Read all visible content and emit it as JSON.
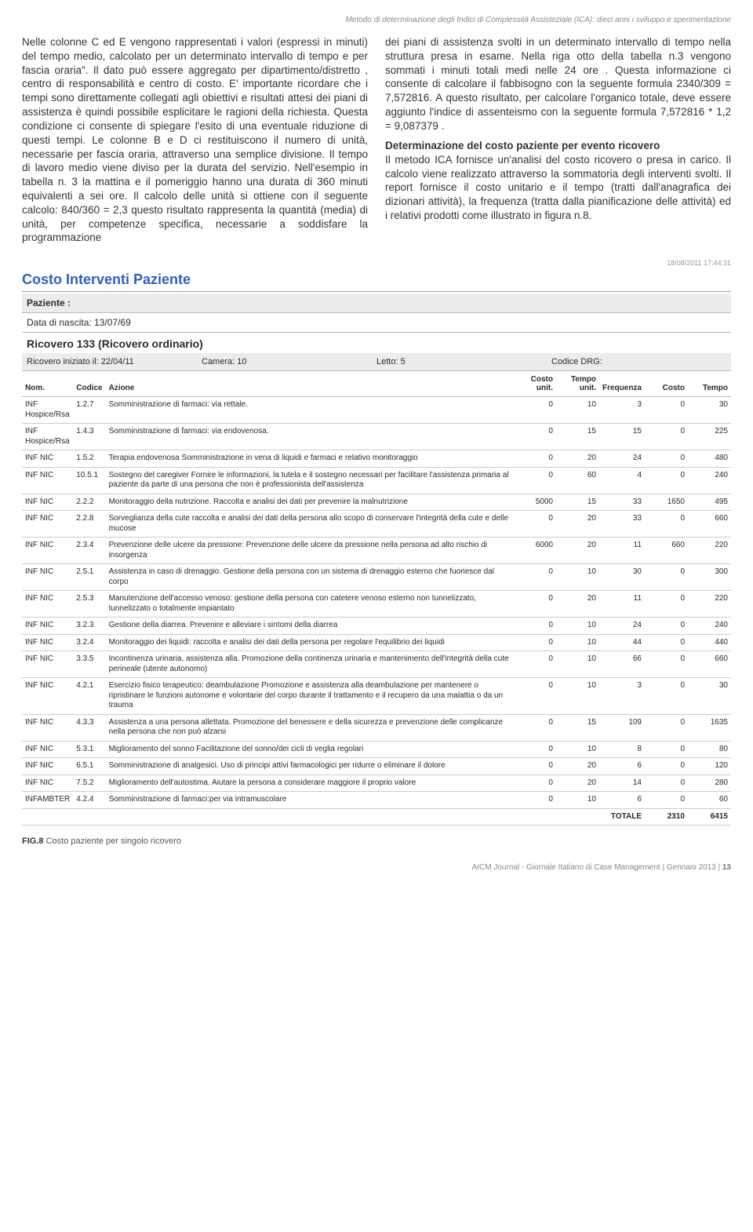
{
  "header": {
    "strip": "Metodo di determinazione degli Indici di Complessità Assisteziale (ICA): dieci anni i sviluppo e sperimentazione"
  },
  "leftCol": {
    "p": "Nelle colonne C ed E vengono rappresentati i valori (espressi in minuti) del tempo medio, calcolato per un determinato intervallo di tempo e per fascia oraria\". Il dato può essere aggregato per dipartimento/distretto , centro di responsabilità e centro di costo. E' importante ricordare che i tempi sono direttamente collegati agli obiettivi e risultati attesi dei piani di assistenza è quindi possibile esplicitare le ragioni della richiesta. Questa condizione ci consente di spiegare l'esito di una eventuale riduzione di questi tempi. Le colonne B e D ci restituiscono il numero di unità, necessarie per fascia oraria, attraverso una semplice divisione. Il tempo di lavoro medio viene diviso per la durata del servizio. Nell'esempio in tabella n. 3 la mattina e il pomeriggio hanno una durata di 360 minuti equivalenti a sei ore. Il calcolo delle unità si ottiene con il seguente calcolo: 840/360 = 2,3 questo risultato rappresenta la quantità (media) di unità, per competenze specifica, necessarie a soddisfare la programmazione"
  },
  "rightCol": {
    "p1": "dei piani di assistenza svolti in un determinato intervallo di tempo nella struttura presa in esame. Nella riga otto della tabella n.3 vengono sommati i minuti totali medi nelle 24 ore . Questa informazione ci consente di calcolare il fabbisogno con la seguente formula 2340/309 = 7,572816. A questo risultato, per calcolare l'organico totale, deve essere aggiunto l'indice di assenteismo con la seguente formula 7,572816 * 1,2 = 9,087379 .",
    "subhead": "Determinazione del costo paziente per evento ricovero",
    "p2": "Il metodo ICA fornisce un'analisi del costo ricovero o presa in carico. Il calcolo viene realizzato attraverso la sommatoria degli interventi svolti. Il report fornisce il costo unitario e il tempo (tratti dall'anagrafica dei dizionari attività), la frequenza (tratta dalla pianificazione delle attività) ed i relativi prodotti come illustrato in figura n.8."
  },
  "report": {
    "timestamp": "18/08/2011 17:44:31",
    "title": "Costo Interventi Paziente",
    "pazienteLabel": "Paziente :",
    "dobLabel": "Data di nascita: 13/07/69",
    "ricovero": "Ricovero 133 (Ricovero ordinario)",
    "meta": {
      "iniziato": "Ricovero iniziato il: 22/04/11",
      "camera": "Camera: 10",
      "letto": "Letto: 5",
      "drg": "Codice DRG:"
    },
    "columns": [
      "Nom.",
      "Codice",
      "Azione",
      "Costo unit.",
      "Tempo unit.",
      "Frequenza",
      "Costo",
      "Tempo"
    ],
    "rows": [
      {
        "nom": "INF Hospice/Rsa",
        "cod": "1.2.7",
        "az": "Somministrazione di farmaci: via rettale.",
        "cu": "0",
        "tu": "10",
        "fr": "3",
        "co": "0",
        "te": "30"
      },
      {
        "nom": "INF Hospice/Rsa",
        "cod": "1.4.3",
        "az": "Somministrazione di farmaci: via endovenosa.",
        "cu": "0",
        "tu": "15",
        "fr": "15",
        "co": "0",
        "te": "225"
      },
      {
        "nom": "INF NIC",
        "cod": "1.5.2",
        "az": "Terapia endovenosa Somministrazione in vena di liquidi e farmaci e relativo monitoraggio",
        "cu": "0",
        "tu": "20",
        "fr": "24",
        "co": "0",
        "te": "480"
      },
      {
        "nom": "INF NIC",
        "cod": "10.5.1",
        "az": "Sostegno del caregiver Fornire le informazioni, la tutela e il sostegno necessari per facilitare l'assistenza primaria al paziente da parte di una persona che non è professionista dell'assistenza",
        "cu": "0",
        "tu": "60",
        "fr": "4",
        "co": "0",
        "te": "240"
      },
      {
        "nom": "INF NIC",
        "cod": "2.2.2",
        "az": "Monitoraggio della nutrizione. Raccolta e analisi dei dati per prevenire la malnutrizione",
        "cu": "5000",
        "tu": "15",
        "fr": "33",
        "co": "1650",
        "te": "495"
      },
      {
        "nom": "INF NIC",
        "cod": "2.2.8",
        "az": "Sorveglianza della cute raccolta e analisi dei dati della persona allo scopo di conservare l'integrità della cute e delle mucose",
        "cu": "0",
        "tu": "20",
        "fr": "33",
        "co": "0",
        "te": "660"
      },
      {
        "nom": "INF NIC",
        "cod": "2.3.4",
        "az": "Prevenzione delle ulcere da pressione: Prevenzione delle ulcere da pressione nella persona ad alto rischio di insorgenza",
        "cu": "6000",
        "tu": "20",
        "fr": "11",
        "co": "660",
        "te": "220"
      },
      {
        "nom": "INF NIC",
        "cod": "2.5.1",
        "az": "Assistenza in caso di drenaggio. Gestione della persona con un sistema di drenaggio esterno che fuoriesce dal corpo",
        "cu": "0",
        "tu": "10",
        "fr": "30",
        "co": "0",
        "te": "300"
      },
      {
        "nom": "INF NIC",
        "cod": "2.5.3",
        "az": "Manutenzione dell'accesso venoso: gestione della persona con catetere venoso esterno non tunnelizzato, tunnelizzato o totalmente impiantato",
        "cu": "0",
        "tu": "20",
        "fr": "11",
        "co": "0",
        "te": "220"
      },
      {
        "nom": "INF NIC",
        "cod": "3.2.3",
        "az": "Gestione della diarrea. Prevenire e alleviare i sintomi della diarrea",
        "cu": "0",
        "tu": "10",
        "fr": "24",
        "co": "0",
        "te": "240"
      },
      {
        "nom": "INF NIC",
        "cod": "3.2.4",
        "az": "Monitoraggio dei liquidi: raccolta e analisi dei dati della persona per regolare l'equilibrio dei liquidi",
        "cu": "0",
        "tu": "10",
        "fr": "44",
        "co": "0",
        "te": "440"
      },
      {
        "nom": "INF NIC",
        "cod": "3.3.5",
        "az": "Incontinenza urinaria, assistenza alla. Promozione della continenza urinaria e mantenimento dell'integrità della cute perineale (utente autonomo)",
        "cu": "0",
        "tu": "10",
        "fr": "66",
        "co": "0",
        "te": "660"
      },
      {
        "nom": "INF NIC",
        "cod": "4.2.1",
        "az": "Esercizio fisico terapeutico: deambulazione Promozione e assistenza alla deambulazione per mantenere o ripristinare le funzioni autonome e volontarie del corpo durante il trattamento e il recupero da una malattia o da un trauma",
        "cu": "0",
        "tu": "10",
        "fr": "3",
        "co": "0",
        "te": "30"
      },
      {
        "nom": "INF NIC",
        "cod": "4.3.3",
        "az": "Assistenza a una persona allettata. Promozione del benessere e della sicurezza e prevenzione delle complicanze nella persona che non può alzarsi",
        "cu": "0",
        "tu": "15",
        "fr": "109",
        "co": "0",
        "te": "1635"
      },
      {
        "nom": "INF NIC",
        "cod": "5.3.1",
        "az": "Miglioramento del sonno Facilitazione del sonno/dei cicli di veglia regolari",
        "cu": "0",
        "tu": "10",
        "fr": "8",
        "co": "0",
        "te": "80"
      },
      {
        "nom": "INF NIC",
        "cod": "6.5.1",
        "az": "Somministrazione di analgesici. Uso di principi attivi farmacologici per ridurre o eliminare il dolore",
        "cu": "0",
        "tu": "20",
        "fr": "6",
        "co": "0",
        "te": "120"
      },
      {
        "nom": "INF NIC",
        "cod": "7.5.2",
        "az": "Miglioramento dell'autostima. Aiutare la persona a considerare maggiore il proprio valore",
        "cu": "0",
        "tu": "20",
        "fr": "14",
        "co": "0",
        "te": "280"
      },
      {
        "nom": "INFAMBTER",
        "cod": "4.2.4",
        "az": "Somministrazione di farmaci:per via intramuscolare",
        "cu": "0",
        "tu": "10",
        "fr": "6",
        "co": "0",
        "te": "60"
      }
    ],
    "totaleLabel": "TOTALE",
    "totaleCosto": "2310",
    "totaleTempo": "6415"
  },
  "figCaption": {
    "b": "FIG.8",
    "t": " Costo paziente per singolo ricovero"
  },
  "footer": {
    "journal": "AICM Journal - Giornale Italiano di Case Management ",
    "issue": "| Gennaio 2013 | ",
    "page": "13"
  }
}
